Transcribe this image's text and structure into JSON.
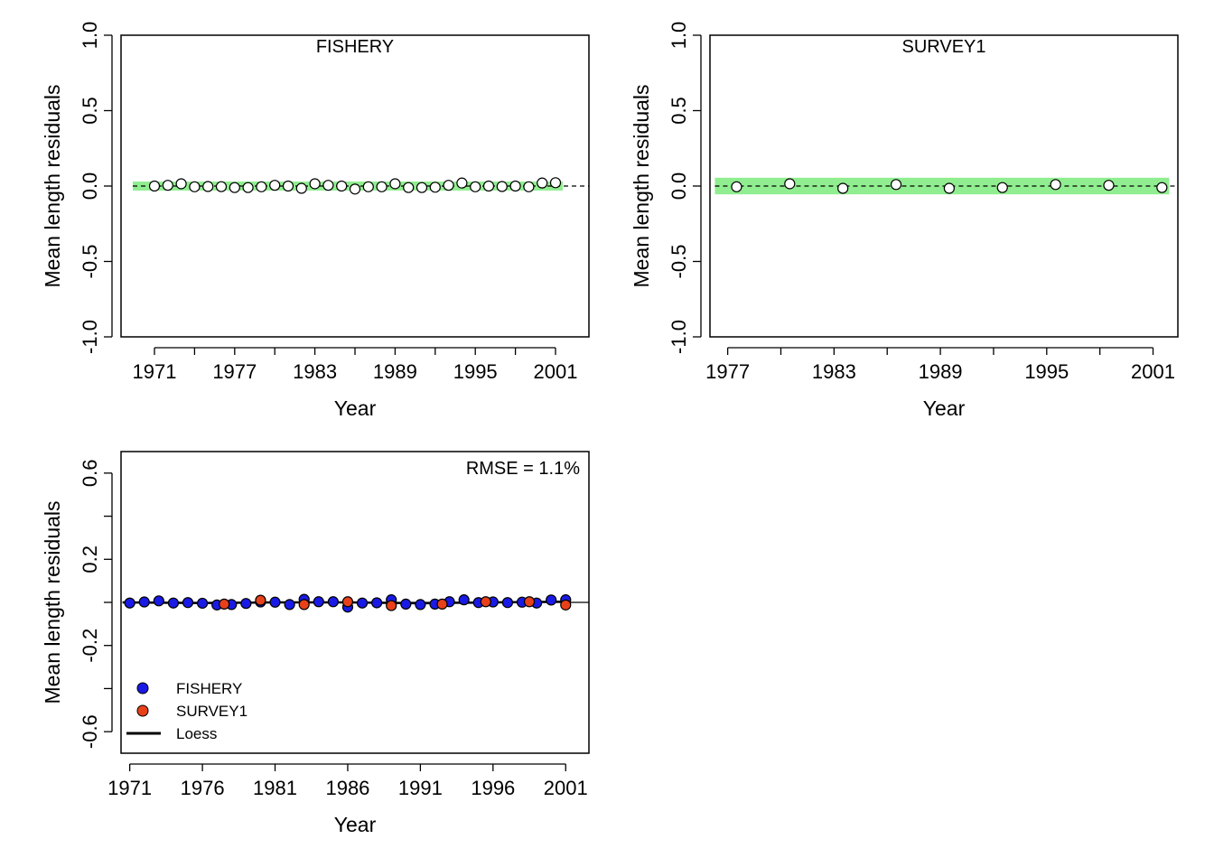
{
  "chart_data": [
    {
      "type": "scatter",
      "title": "FISHERY",
      "xlabel": "Year",
      "ylabel": "Mean length residuals",
      "ylim": [
        -1.0,
        1.0
      ],
      "xlim": [
        1968.5,
        2003.5
      ],
      "yticks": [
        -1.0,
        -0.5,
        0.0,
        0.5,
        1.0
      ],
      "ytick_labels": [
        "-1.0",
        "-0.5",
        "0.0",
        "0.5",
        "1.0"
      ],
      "xticks": [
        1971,
        1974,
        1977,
        1980,
        1983,
        1986,
        1989,
        1992,
        1995,
        1998,
        2001
      ],
      "xtick_labels": [
        "1971",
        "",
        "1977",
        "",
        "1983",
        "",
        "1989",
        "",
        "1995",
        "",
        "2001"
      ],
      "band": [
        -0.03,
        0.03
      ],
      "band_color": "#90EE90",
      "point_fill": "#ffffff",
      "reference_line": 0,
      "series": [
        {
          "x": [
            1971,
            1972,
            1973,
            1974,
            1975,
            1976,
            1977,
            1978,
            1979,
            1980,
            1981,
            1982,
            1983,
            1984,
            1985,
            1986,
            1987,
            1988,
            1989,
            1990,
            1991,
            1992,
            1993,
            1994,
            1995,
            1996,
            1997,
            1998,
            1999,
            2000,
            2001
          ],
          "values": [
            0.0,
            0.005,
            0.015,
            -0.005,
            -0.003,
            -0.004,
            -0.01,
            -0.01,
            -0.005,
            0.005,
            0.0,
            -0.015,
            0.015,
            0.005,
            0.0,
            -0.02,
            -0.005,
            -0.005,
            0.015,
            -0.01,
            -0.01,
            -0.008,
            0.005,
            0.02,
            -0.005,
            0.0,
            -0.003,
            0.0,
            -0.005,
            0.02,
            0.022
          ]
        }
      ]
    },
    {
      "type": "scatter",
      "title": "SURVEY1",
      "xlabel": "Year",
      "ylabel": "Mean length residuals",
      "ylim": [
        -1.0,
        1.0
      ],
      "xlim": [
        1976,
        2002.4
      ],
      "yticks": [
        -1.0,
        -0.5,
        0.0,
        0.5,
        1.0
      ],
      "ytick_labels": [
        "-1.0",
        "-0.5",
        "0.0",
        "0.5",
        "1.0"
      ],
      "xticks": [
        1977,
        1980,
        1983,
        1986,
        1989,
        1992,
        1995,
        1998,
        2001
      ],
      "xtick_labels": [
        "1977",
        "",
        "1983",
        "",
        "1989",
        "",
        "1995",
        "",
        "2001"
      ],
      "band": [
        -0.055,
        0.055
      ],
      "band_color": "#90EE90",
      "point_fill": "#ffffff",
      "reference_line": 0,
      "series": [
        {
          "x": [
            1977.5,
            1980.5,
            1983.5,
            1986.5,
            1989.5,
            1992.5,
            1995.5,
            1998.5,
            2001.5
          ],
          "values": [
            -0.005,
            0.015,
            -0.015,
            0.01,
            -0.015,
            -0.01,
            0.01,
            0.005,
            -0.01
          ]
        }
      ]
    },
    {
      "type": "scatter",
      "title": "",
      "annotation": "RMSE = 1.1%",
      "xlabel": "Year",
      "ylabel": "Mean length residuals",
      "ylim": [
        -0.7,
        0.7
      ],
      "xlim": [
        1970.4,
        2002.6
      ],
      "yticks": [
        -0.6,
        -0.4,
        -0.2,
        0.0,
        0.2,
        0.4,
        0.6
      ],
      "ytick_labels": [
        "-0.6",
        "",
        "-0.2",
        "",
        "0.2",
        "",
        "0.6"
      ],
      "xticks": [
        1971,
        1976,
        1981,
        1986,
        1991,
        1996,
        2001
      ],
      "xtick_labels": [
        "1971",
        "1976",
        "1981",
        "1986",
        "1991",
        "1996",
        "2001"
      ],
      "reference_line": 0,
      "legend": {
        "position": "bottom-left",
        "entries": [
          "FISHERY",
          "SURVEY1",
          "Loess"
        ]
      },
      "series": [
        {
          "name": "FISHERY",
          "color": "#1a1ae6",
          "x": [
            1971,
            1972,
            1973,
            1974,
            1975,
            1976,
            1977,
            1978,
            1979,
            1980,
            1981,
            1982,
            1983,
            1984,
            1985,
            1986,
            1987,
            1988,
            1989,
            1990,
            1991,
            1992,
            1993,
            1994,
            1995,
            1996,
            1997,
            1998,
            1999,
            2000,
            2001
          ],
          "values": [
            -0.003,
            0.002,
            0.007,
            -0.003,
            -0.001,
            -0.004,
            -0.012,
            -0.01,
            -0.005,
            0.002,
            0.001,
            -0.01,
            0.014,
            0.003,
            0.003,
            -0.022,
            -0.003,
            -0.002,
            0.012,
            -0.008,
            -0.01,
            -0.008,
            0.003,
            0.012,
            -0.001,
            0.002,
            -0.001,
            0.001,
            -0.003,
            0.011,
            0.012
          ]
        },
        {
          "name": "SURVEY1",
          "color": "#e8411a",
          "x": [
            1977.5,
            1980,
            1983,
            1986,
            1989,
            1992.5,
            1995.5,
            1998.5,
            2001
          ],
          "values": [
            -0.008,
            0.01,
            -0.01,
            0.003,
            -0.015,
            -0.008,
            0.003,
            0.003,
            -0.012
          ]
        },
        {
          "name": "Loess",
          "color": "#000000",
          "x": [
            1971,
            1976,
            1981,
            1986,
            1991,
            1996,
            2001
          ],
          "values": [
            0.0,
            -0.003,
            0.0,
            0.0,
            -0.004,
            0.0,
            0.003
          ]
        }
      ]
    }
  ]
}
